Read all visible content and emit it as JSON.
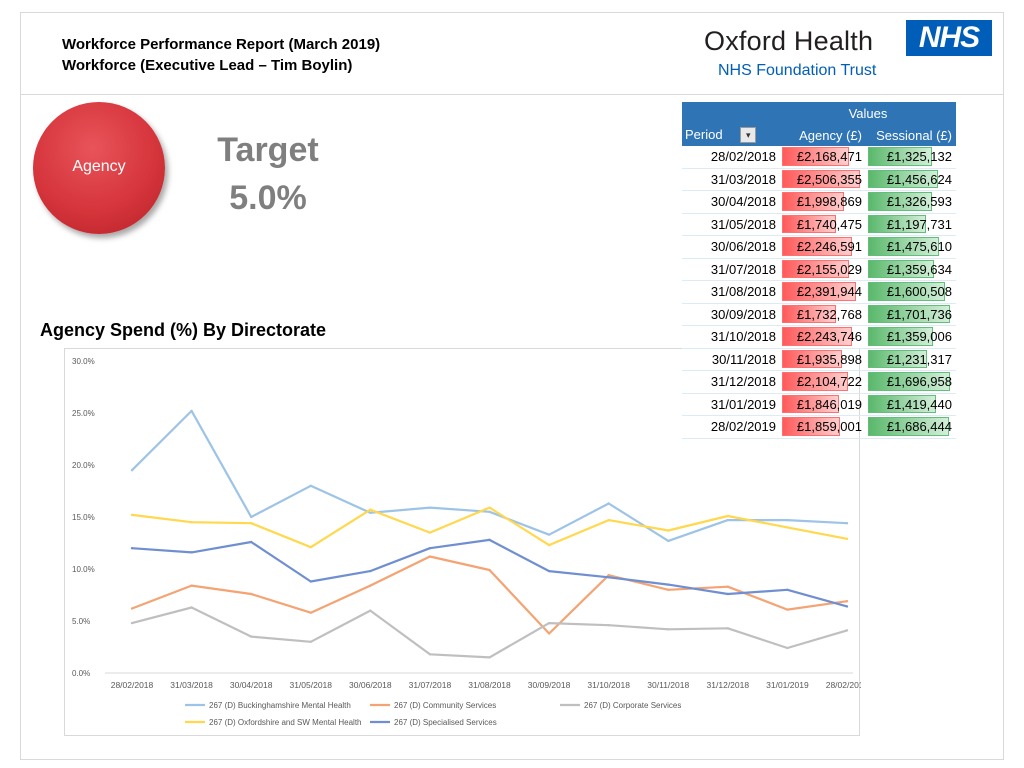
{
  "header": {
    "title_line1": "Workforce Performance Report (March 2019)",
    "title_line2": "Workforce (Executive Lead – Tim Boylin)"
  },
  "logo": {
    "org_name": "Oxford Health",
    "nhs_mark": "NHS",
    "subtitle": "NHS Foundation Trust"
  },
  "kpi": {
    "label": "Agency",
    "target_label": "Target",
    "target_value": "5.0%"
  },
  "colors": {
    "nhs_blue": "#005eb8",
    "table_header": "#2f75b5",
    "agency_bar": "#ff5a5a",
    "sessional_bar": "#5ab86b"
  },
  "pivot": {
    "values_header": "Values",
    "period_header": "Period",
    "agency_header": "Agency (£)",
    "sessional_header": "Sessional (£)",
    "filter_icon": "sort-filter-icon",
    "rows": [
      {
        "period": "28/02/2018",
        "agency": "£2,168,471",
        "sessional": "£1,325,132",
        "agency_num": 2168471,
        "sessional_num": 1325132
      },
      {
        "period": "31/03/2018",
        "agency": "£2,506,355",
        "sessional": "£1,456,624",
        "agency_num": 2506355,
        "sessional_num": 1456624
      },
      {
        "period": "30/04/2018",
        "agency": "£1,998,869",
        "sessional": "£1,326,593",
        "agency_num": 1998869,
        "sessional_num": 1326593
      },
      {
        "period": "31/05/2018",
        "agency": "£1,740,475",
        "sessional": "£1,197,731",
        "agency_num": 1740475,
        "sessional_num": 1197731
      },
      {
        "period": "30/06/2018",
        "agency": "£2,246,591",
        "sessional": "£1,475,610",
        "agency_num": 2246591,
        "sessional_num": 1475610
      },
      {
        "period": "31/07/2018",
        "agency": "£2,155,029",
        "sessional": "£1,359,634",
        "agency_num": 2155029,
        "sessional_num": 1359634
      },
      {
        "period": "31/08/2018",
        "agency": "£2,391,944",
        "sessional": "£1,600,508",
        "agency_num": 2391944,
        "sessional_num": 1600508
      },
      {
        "period": "30/09/2018",
        "agency": "£1,732,768",
        "sessional": "£1,701,736",
        "agency_num": 1732768,
        "sessional_num": 1701736
      },
      {
        "period": "31/10/2018",
        "agency": "£2,243,746",
        "sessional": "£1,359,006",
        "agency_num": 2243746,
        "sessional_num": 1359006
      },
      {
        "period": "30/11/2018",
        "agency": "£1,935,898",
        "sessional": "£1,231,317",
        "agency_num": 1935898,
        "sessional_num": 1231317
      },
      {
        "period": "31/12/2018",
        "agency": "£2,104,722",
        "sessional": "£1,696,958",
        "agency_num": 2104722,
        "sessional_num": 1696958
      },
      {
        "period": "31/01/2019",
        "agency": "£1,846,019",
        "sessional": "£1,419,440",
        "agency_num": 1846019,
        "sessional_num": 1419440
      },
      {
        "period": "28/02/2019",
        "agency": "£1,859,001",
        "sessional": "£1,686,444",
        "agency_num": 1859001,
        "sessional_num": 1686444
      }
    ]
  },
  "chart_data": {
    "type": "line",
    "title": "Agency Spend (%) By Directorate",
    "xlabel": "",
    "ylabel": "",
    "ylim": [
      0,
      30
    ],
    "yticks": [
      0,
      5,
      10,
      15,
      20,
      25,
      30
    ],
    "ytick_labels": [
      "0.0%",
      "5.0%",
      "10.0%",
      "15.0%",
      "20.0%",
      "25.0%",
      "30.0%"
    ],
    "grid": false,
    "legend_position": "bottom",
    "categories": [
      "28/02/2018",
      "31/03/2018",
      "30/04/2018",
      "31/05/2018",
      "30/06/2018",
      "31/07/2018",
      "31/08/2018",
      "30/09/2018",
      "31/10/2018",
      "30/11/2018",
      "31/12/2018",
      "31/01/2019",
      "28/02/2019"
    ],
    "series": [
      {
        "name": "267 (D) Buckinghamshire Mental Health",
        "color": "#9dc3e6",
        "values": [
          19.5,
          25.2,
          15.0,
          18.0,
          15.4,
          15.9,
          15.5,
          13.3,
          16.3,
          12.7,
          14.7,
          14.7,
          14.4
        ]
      },
      {
        "name": "267 (D) Community Services",
        "color": "#f4a373",
        "values": [
          6.2,
          8.4,
          7.6,
          5.8,
          8.4,
          11.2,
          9.9,
          3.8,
          9.4,
          8.0,
          8.3,
          6.1,
          6.9
        ]
      },
      {
        "name": "267 (D) Corporate Services",
        "color": "#bfbfbf",
        "values": [
          4.8,
          6.3,
          3.5,
          3.0,
          6.0,
          1.8,
          1.5,
          4.8,
          4.6,
          4.2,
          4.3,
          2.4,
          4.1
        ]
      },
      {
        "name": "267 (D) Oxfordshire and SW Mental Health",
        "color": "#ffd84d",
        "values": [
          15.2,
          14.5,
          14.4,
          12.1,
          15.7,
          13.5,
          15.9,
          12.3,
          14.7,
          13.7,
          15.1,
          14.0,
          12.9
        ]
      },
      {
        "name": "267 (D) Specialised Services",
        "color": "#6f8fd1",
        "values": [
          12.0,
          11.6,
          12.6,
          8.8,
          9.8,
          12.0,
          12.8,
          9.8,
          9.2,
          8.5,
          7.6,
          8.0,
          6.4
        ]
      }
    ]
  }
}
